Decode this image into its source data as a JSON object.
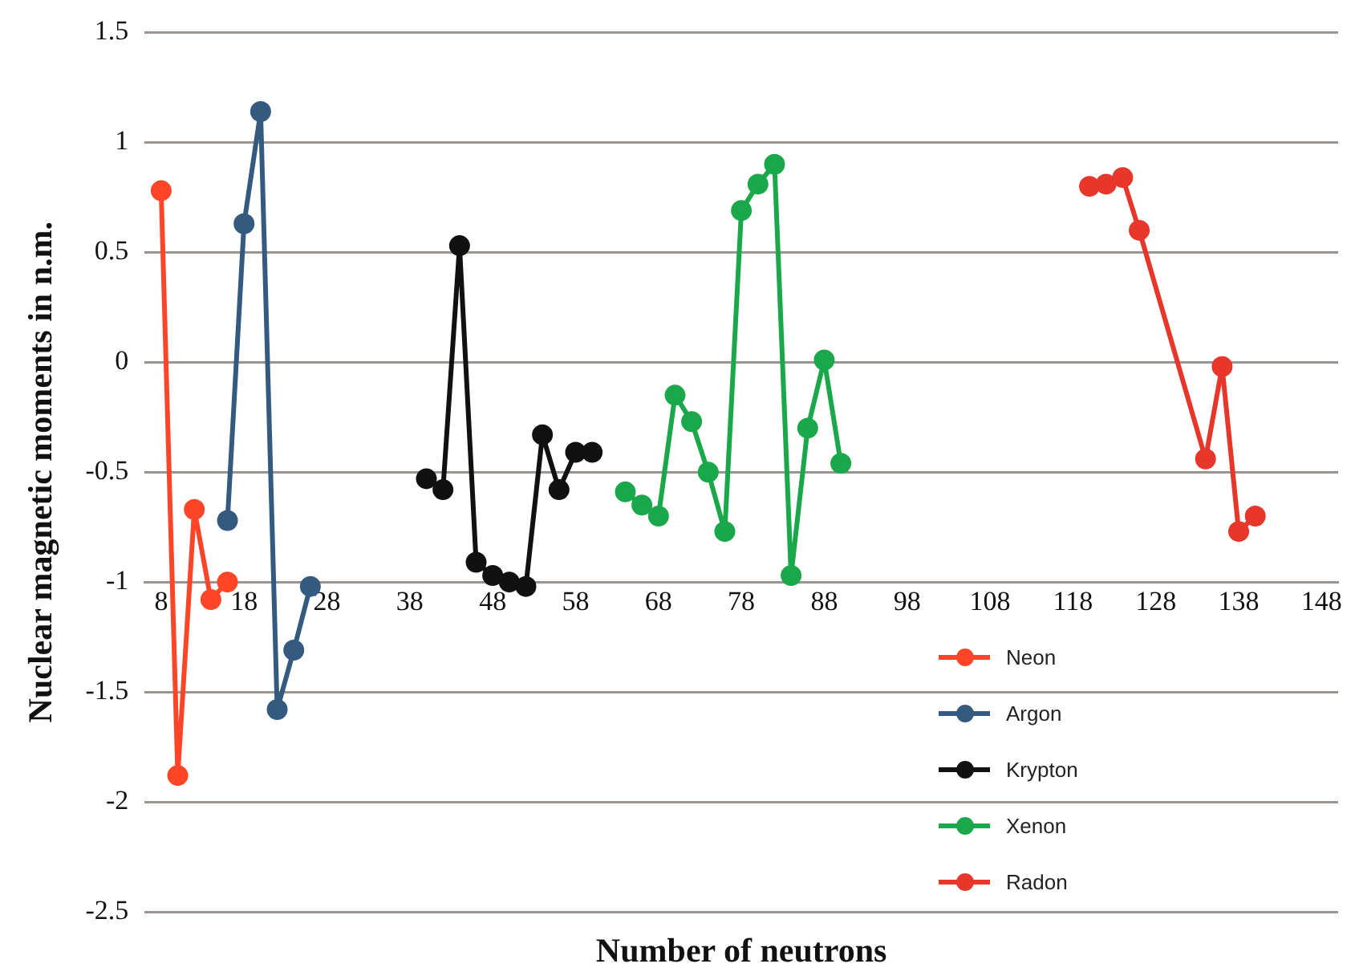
{
  "chart_data": {
    "type": "line",
    "xlabel": "Number of neutrons",
    "ylabel": "Nuclear magnetic moments in n.m.",
    "xlim": [
      6,
      150
    ],
    "xticks": [
      8,
      18,
      28,
      38,
      48,
      58,
      68,
      78,
      88,
      98,
      108,
      118,
      128,
      138,
      148
    ],
    "ylim": [
      -2.5,
      1.5
    ],
    "yticks": [
      -2.5,
      -2,
      -1.5,
      -1,
      -0.5,
      0,
      0.5,
      1,
      1.5
    ],
    "grid": "y",
    "legend": "bottom right",
    "marker": "circle",
    "line_style": "solid",
    "series": [
      {
        "name": "Neon",
        "color": "#ff4528",
        "x": [
          8,
          10,
          12,
          14,
          16
        ],
        "values": [
          0.78,
          -1.88,
          -0.67,
          -1.08,
          -1.0
        ]
      },
      {
        "name": "Argon",
        "color": "#355a80",
        "x": [
          16,
          18,
          20,
          22,
          24,
          26
        ],
        "values": [
          -0.72,
          0.63,
          1.14,
          -1.58,
          -1.31,
          -1.02
        ]
      },
      {
        "name": "Krypton",
        "color": "#111111",
        "x": [
          40,
          42,
          44,
          46,
          48,
          50,
          52,
          54,
          56,
          58,
          60
        ],
        "values": [
          -0.53,
          -0.58,
          0.53,
          -0.91,
          -0.97,
          -1.0,
          -1.02,
          -0.33,
          -0.58,
          -0.41,
          -0.41
        ]
      },
      {
        "name": "Xenon",
        "color": "#1aa84a",
        "x": [
          64,
          66,
          68,
          70,
          72,
          74,
          76,
          78,
          80,
          82,
          84,
          86,
          88,
          90
        ],
        "values": [
          -0.59,
          -0.65,
          -0.7,
          -0.15,
          -0.27,
          -0.5,
          -0.77,
          0.69,
          0.81,
          0.9,
          -0.97,
          -0.3,
          0.01,
          -0.46
        ]
      },
      {
        "name": "Radon",
        "color": "#e8372a",
        "x": [
          120,
          122,
          124,
          126,
          134,
          136,
          138,
          140
        ],
        "values": [
          0.8,
          0.81,
          0.84,
          0.6,
          -0.44,
          -0.02,
          -0.77,
          -0.7
        ]
      }
    ]
  }
}
